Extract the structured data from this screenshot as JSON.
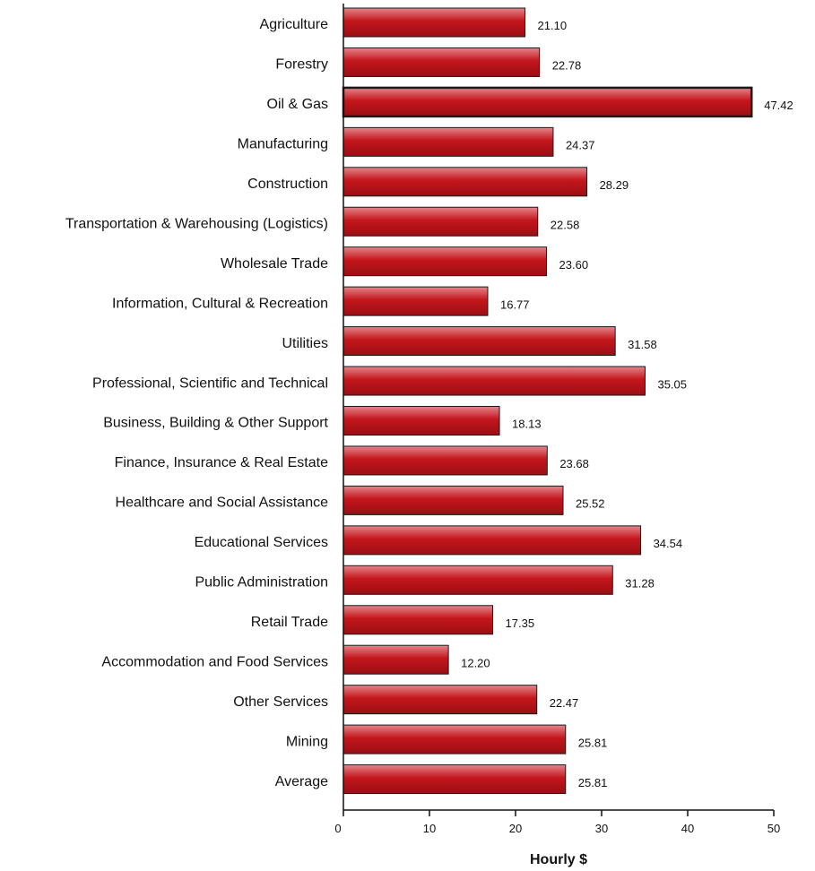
{
  "chart_data": {
    "type": "bar",
    "orientation": "horizontal",
    "categories": [
      "Agriculture",
      "Forestry",
      "Oil & Gas",
      "Manufacturing",
      "Construction",
      "Transportation & Warehousing (Logistics)",
      "Wholesale Trade",
      "Information, Cultural & Recreation",
      "Utilities",
      "Professional, Scientific and Technical",
      "Business, Building & Other Support",
      "Finance, Insurance & Real Estate",
      "Healthcare and Social Assistance",
      "Educational Services",
      "Public Administration",
      "Retail Trade",
      "Accommodation and Food Services",
      "Other Services",
      "Mining",
      "Average"
    ],
    "values": [
      21.1,
      22.78,
      47.42,
      24.37,
      28.29,
      22.58,
      23.6,
      16.77,
      31.58,
      35.05,
      18.13,
      23.68,
      25.52,
      34.54,
      31.28,
      17.35,
      12.2,
      22.47,
      25.81,
      25.81
    ],
    "value_labels": [
      "21.10",
      "22.78",
      "47.42",
      "24.37",
      "28.29",
      "22.58",
      "23.60",
      "16.77",
      "31.58",
      "35.05",
      "18.13",
      "23.68",
      "25.52",
      "34.54",
      "31.28",
      "17.35",
      "12.20",
      "22.47",
      "25.81",
      "25.81"
    ],
    "highlight_index": 2,
    "xlabel": "Hourly $",
    "xlim": [
      0,
      50
    ],
    "xticks": [
      0,
      10,
      20,
      30,
      40,
      50
    ],
    "grid": false,
    "colors": {
      "bar_top": "#e4868b",
      "bar_mid": "#c4161c",
      "bar_bottom": "#9a0f14",
      "border": "#1a1a1a"
    }
  }
}
